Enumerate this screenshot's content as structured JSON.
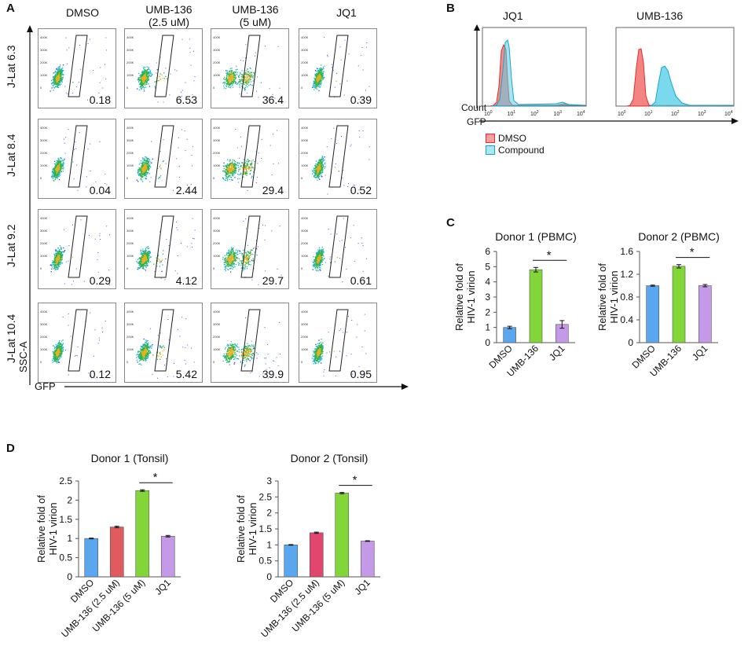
{
  "panels": {
    "a": "A",
    "b": "B",
    "c": "C",
    "d": "D"
  },
  "panel_a": {
    "columns": [
      {
        "line1": "DMSO",
        "line2": ""
      },
      {
        "line1": "UMB-136",
        "line2": "(2.5 uM)"
      },
      {
        "line1": "UMB-136",
        "line2": "(5 uM)"
      },
      {
        "line1": "JQ1",
        "line2": ""
      }
    ],
    "rows": [
      "J-Lat 6.3",
      "J-Lat 8.4",
      "J-Lat 9.2",
      "J-Lat 10.4"
    ],
    "percent_gfp": [
      [
        "0.18",
        "6.53",
        "36.4",
        "0.39"
      ],
      [
        "0.04",
        "2.44",
        "29.4",
        "0.52"
      ],
      [
        "0.29",
        "4.12",
        "29.7",
        "0.61"
      ],
      [
        "0.12",
        "5.42",
        "39.9",
        "0.95"
      ]
    ],
    "y_axis": "SSC-A",
    "x_axis": "GFP",
    "y_ticks": [
      "400K",
      "300K",
      "200K",
      "100K",
      "0"
    ]
  },
  "panel_b": {
    "titles": [
      "JQ1",
      "UMB-136"
    ],
    "y_axis": "Count",
    "x_axis": "GFP",
    "legend": [
      {
        "label": "DMSO",
        "color": "#f26d6d"
      },
      {
        "label": "Compound",
        "color": "#5ad0e8"
      }
    ]
  },
  "significance": "*",
  "chart_data": [
    {
      "type": "bar",
      "title": "Donor 1 (PBMC)",
      "categories": [
        "DMSO",
        "UMB-136",
        "JQ1"
      ],
      "values": [
        1.0,
        4.8,
        1.2
      ],
      "errors": [
        0.08,
        0.15,
        0.25
      ],
      "colors": [
        "#5aa6ef",
        "#82d63a",
        "#c49ae8"
      ],
      "ylabel": "Relative fold of HIV-1 virion",
      "ylim": [
        0,
        6
      ],
      "yticks": [
        0,
        1,
        2,
        3,
        4,
        5,
        6
      ],
      "significance": {
        "from": 1,
        "to": 2,
        "label": "*"
      }
    },
    {
      "type": "bar",
      "title": "Donor 2 (PBMC)",
      "categories": [
        "DMSO",
        "UMB-136",
        "JQ1"
      ],
      "values": [
        1.0,
        1.34,
        1.0
      ],
      "errors": [
        0.01,
        0.03,
        0.02
      ],
      "colors": [
        "#5aa6ef",
        "#82d63a",
        "#c49ae8"
      ],
      "ylabel": "Relative fold of HIV-1 virion",
      "ylim": [
        0,
        1.6
      ],
      "yticks": [
        0,
        0.4,
        0.8,
        1.2,
        1.6
      ],
      "significance": {
        "from": 1,
        "to": 2,
        "label": "*"
      }
    },
    {
      "type": "bar",
      "title": "Donor 1 (Tonsil)",
      "categories": [
        "DMSO",
        "UMB-136 (2.5 uM)",
        "UMB-136 (5 uM)",
        "JQ1"
      ],
      "values": [
        1.0,
        1.3,
        2.25,
        1.06
      ],
      "errors": [
        0.01,
        0.02,
        0.02,
        0.02
      ],
      "colors": [
        "#5aa6ef",
        "#e05a5e",
        "#82d63a",
        "#c49ae8"
      ],
      "ylabel": "Relative fold of HIV-1 virion",
      "ylim": [
        0,
        2.5
      ],
      "yticks": [
        0,
        0.5,
        1,
        1.5,
        2,
        2.5
      ],
      "significance": {
        "from": 2,
        "to": 3,
        "label": "*"
      }
    },
    {
      "type": "bar",
      "title": "Donor 2 (Tonsil)",
      "categories": [
        "DMSO",
        "UMB-136 (2.5 uM)",
        "UMB-136 (5 uM)",
        "JQ1"
      ],
      "values": [
        1.0,
        1.38,
        2.62,
        1.12
      ],
      "errors": [
        0.01,
        0.02,
        0.02,
        0.01
      ],
      "colors": [
        "#5aa6ef",
        "#e0466e",
        "#82d63a",
        "#c49ae8"
      ],
      "ylabel": "Relative fold of HIV-1 virion",
      "ylim": [
        0,
        3
      ],
      "yticks": [
        0,
        0.5,
        1,
        1.5,
        2,
        2.5,
        3
      ],
      "significance": {
        "from": 2,
        "to": 3,
        "label": "*"
      }
    }
  ]
}
